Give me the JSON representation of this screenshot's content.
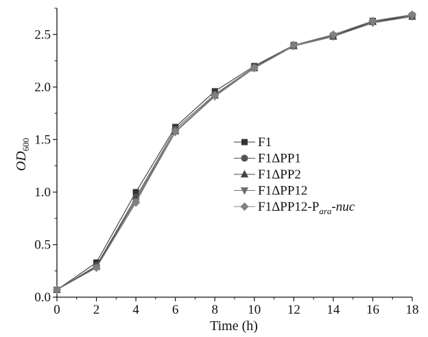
{
  "chart_data": {
    "type": "line",
    "title": "",
    "xlabel": "Time (h)",
    "ylabel_main": "OD",
    "ylabel_sub": "600",
    "xlim": [
      0,
      18
    ],
    "ylim": [
      0,
      2.75
    ],
    "x_ticks": [
      "0",
      "2",
      "4",
      "6",
      "8",
      "10",
      "12",
      "14",
      "16",
      "18"
    ],
    "y_ticks": [
      "0.0",
      "0.5",
      "1.0",
      "1.5",
      "2.0",
      "2.5"
    ],
    "grid": false,
    "legend_position": "center-right",
    "x": [
      0,
      2,
      4,
      6,
      8,
      10,
      12,
      14,
      16,
      18
    ],
    "series": [
      {
        "name": "F1",
        "marker": "square",
        "color": "#333333",
        "values": [
          0.07,
          0.33,
          1.0,
          1.62,
          1.96,
          2.2,
          2.4,
          2.49,
          2.63,
          2.68
        ]
      },
      {
        "name": "F1ΔPP1",
        "marker": "circle",
        "color": "#555555",
        "values": [
          0.07,
          0.3,
          0.95,
          1.6,
          1.93,
          2.19,
          2.4,
          2.49,
          2.62,
          2.68
        ]
      },
      {
        "name": "F1ΔPP2",
        "marker": "triangle-up",
        "color": "#444444",
        "values": [
          0.07,
          0.29,
          0.93,
          1.58,
          1.92,
          2.18,
          2.39,
          2.48,
          2.62,
          2.67
        ]
      },
      {
        "name": "F1ΔPP12",
        "marker": "triangle-down",
        "color": "#6e6e6e",
        "values": [
          0.07,
          0.28,
          0.91,
          1.57,
          1.91,
          2.18,
          2.39,
          2.48,
          2.61,
          2.67
        ]
      },
      {
        "name_main": "F1ΔPP12-P",
        "name_sub": "ara",
        "name_tail": "-nuc",
        "marker": "diamond",
        "color": "#808080",
        "values": [
          0.07,
          0.28,
          0.9,
          1.58,
          1.92,
          2.18,
          2.4,
          2.5,
          2.63,
          2.69
        ]
      }
    ]
  }
}
